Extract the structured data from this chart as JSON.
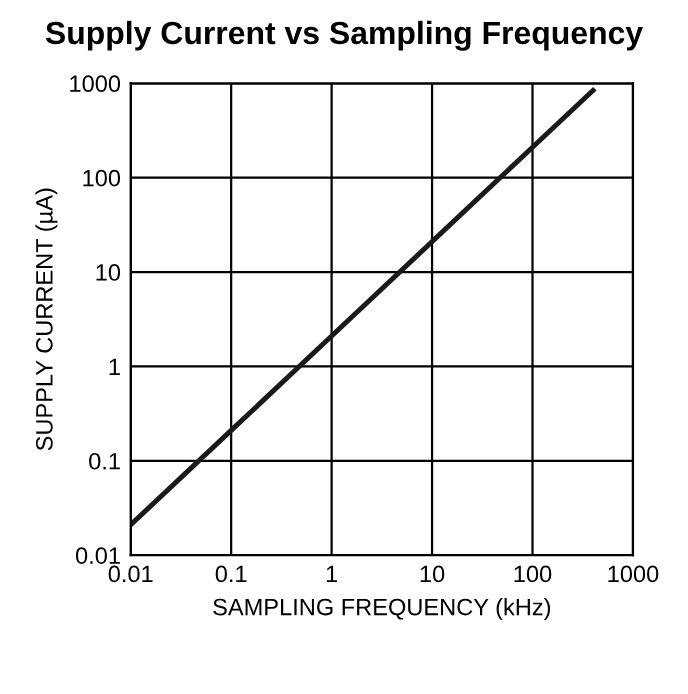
{
  "chart_data": {
    "type": "line",
    "title": "Supply Current vs Sampling Frequency",
    "xlabel": "SAMPLING FREQUENCY (kHz)",
    "ylabel": "SUPPLY CURRENT (µA)",
    "series": [
      {
        "color": "#1a1a1a",
        "x": [
          0.01,
          0.1,
          1,
          10,
          100,
          400
        ],
        "values": [
          0.021,
          0.21,
          2.1,
          21,
          210,
          840
        ]
      }
    ],
    "log": "xy",
    "xlim": [
      0.01,
      1000
    ],
    "ylim": [
      0.01,
      1000
    ],
    "xticks": [
      0.01,
      0.1,
      1,
      10,
      100,
      1000
    ],
    "yticks": [
      0.01,
      0.1,
      1,
      10,
      100,
      1000
    ],
    "grid": true,
    "marker": "none",
    "line_style": "solid"
  }
}
